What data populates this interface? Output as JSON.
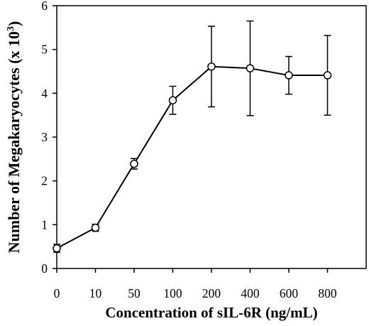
{
  "chart_data": {
    "type": "line",
    "categories": [
      "0",
      "10",
      "50",
      "100",
      "200",
      "400",
      "600",
      "800"
    ],
    "series": [
      {
        "values": [
          0.46,
          0.93,
          2.39,
          3.84,
          4.61,
          4.57,
          4.41,
          4.41
        ],
        "error": [
          0.09,
          0.08,
          0.12,
          0.32,
          0.92,
          1.08,
          0.43,
          0.91
        ]
      }
    ],
    "xlabel": "Concentration of sIL-6R (ng/mL)",
    "ylabel": {
      "text": "Number of Megakaryocytes (x 10",
      "exponent": "3",
      "close": ")"
    },
    "ylim": [
      0,
      6
    ],
    "yticks": [
      0,
      1,
      2,
      3,
      4,
      5,
      6
    ],
    "grid": false,
    "error_bars": true,
    "colors": {
      "line": "#000000",
      "marker_fill": "#ffffff",
      "background": "#ffffff"
    }
  }
}
